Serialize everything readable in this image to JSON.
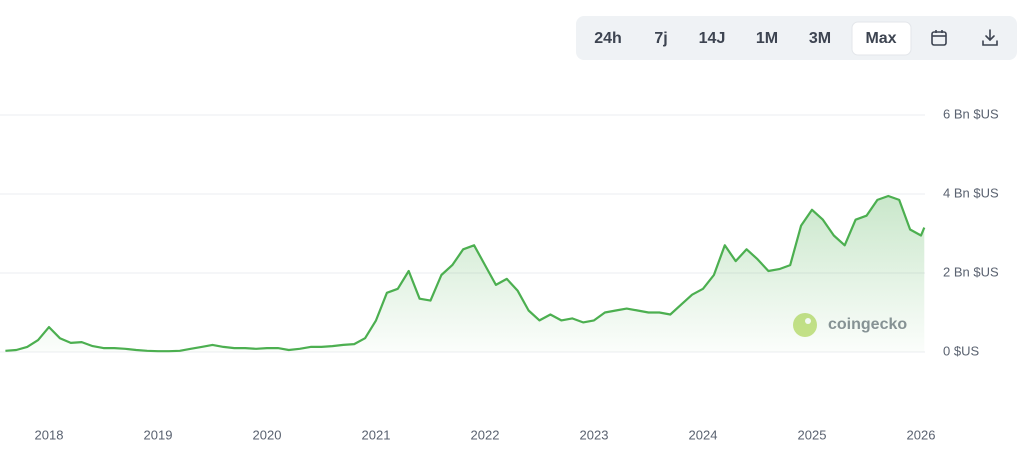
{
  "toolbar": {
    "buttons": [
      "24h",
      "7j",
      "14J",
      "1M",
      "3M",
      "Max"
    ],
    "active": 5
  },
  "chart_data": {
    "type": "line",
    "watermark": "coingecko",
    "color": "#4caf50",
    "grid": true,
    "x": [
      2017.6,
      2017.7,
      2017.8,
      2017.9,
      2018.0,
      2018.1,
      2018.2,
      2018.3,
      2018.4,
      2018.5,
      2018.6,
      2018.7,
      2018.8,
      2018.9,
      2019.0,
      2019.1,
      2019.2,
      2019.3,
      2019.4,
      2019.5,
      2019.6,
      2019.7,
      2019.8,
      2019.9,
      2020.0,
      2020.1,
      2020.2,
      2020.3,
      2020.4,
      2020.5,
      2020.6,
      2020.7,
      2020.8,
      2020.9,
      2021.0,
      2021.1,
      2021.2,
      2021.3,
      2021.4,
      2021.5,
      2021.6,
      2021.7,
      2021.8,
      2021.9,
      2022.0,
      2022.1,
      2022.2,
      2022.3,
      2022.4,
      2022.5,
      2022.6,
      2022.7,
      2022.8,
      2022.9,
      2023.0,
      2023.1,
      2023.2,
      2023.3,
      2023.4,
      2023.5,
      2023.6,
      2023.7,
      2023.8,
      2023.9,
      2024.0,
      2024.1,
      2024.2,
      2024.3,
      2024.4,
      2024.5,
      2024.6,
      2024.7,
      2024.8,
      2024.9,
      2025.0,
      2025.1,
      2025.2,
      2025.3,
      2025.4,
      2025.5,
      2025.6,
      2025.7,
      2025.8,
      2025.9,
      2026.0,
      2026.03
    ],
    "values": [
      0.03,
      0.05,
      0.13,
      0.3,
      0.63,
      0.35,
      0.23,
      0.25,
      0.15,
      0.1,
      0.1,
      0.08,
      0.05,
      0.03,
      0.02,
      0.02,
      0.03,
      0.08,
      0.13,
      0.18,
      0.13,
      0.1,
      0.1,
      0.08,
      0.1,
      0.1,
      0.05,
      0.08,
      0.13,
      0.13,
      0.15,
      0.18,
      0.2,
      0.35,
      0.8,
      1.5,
      1.6,
      2.05,
      1.35,
      1.3,
      1.95,
      2.2,
      2.6,
      2.7,
      2.2,
      1.7,
      1.85,
      1.55,
      1.05,
      0.8,
      0.95,
      0.8,
      0.85,
      0.75,
      0.8,
      1.0,
      1.05,
      1.1,
      1.05,
      1.0,
      1.0,
      0.95,
      1.2,
      1.45,
      1.6,
      1.95,
      2.7,
      2.3,
      2.6,
      2.35,
      2.05,
      2.1,
      2.2,
      3.2,
      3.6,
      3.35,
      2.95,
      2.7,
      3.35,
      3.45,
      3.85,
      3.95,
      3.85,
      3.1,
      2.95,
      3.15
    ],
    "xlim": [
      2017.55,
      2026.04
    ],
    "xticks": [
      2018,
      2019,
      2020,
      2021,
      2022,
      2023,
      2024,
      2025,
      2026
    ],
    "ylim": [
      0,
      6
    ],
    "yticks": [
      {
        "value": 0,
        "label": "0 $US"
      },
      {
        "value": 2,
        "label": "2 Bn $US"
      },
      {
        "value": 4,
        "label": "4 Bn $US"
      },
      {
        "value": 6,
        "label": "6 Bn $US"
      }
    ]
  }
}
